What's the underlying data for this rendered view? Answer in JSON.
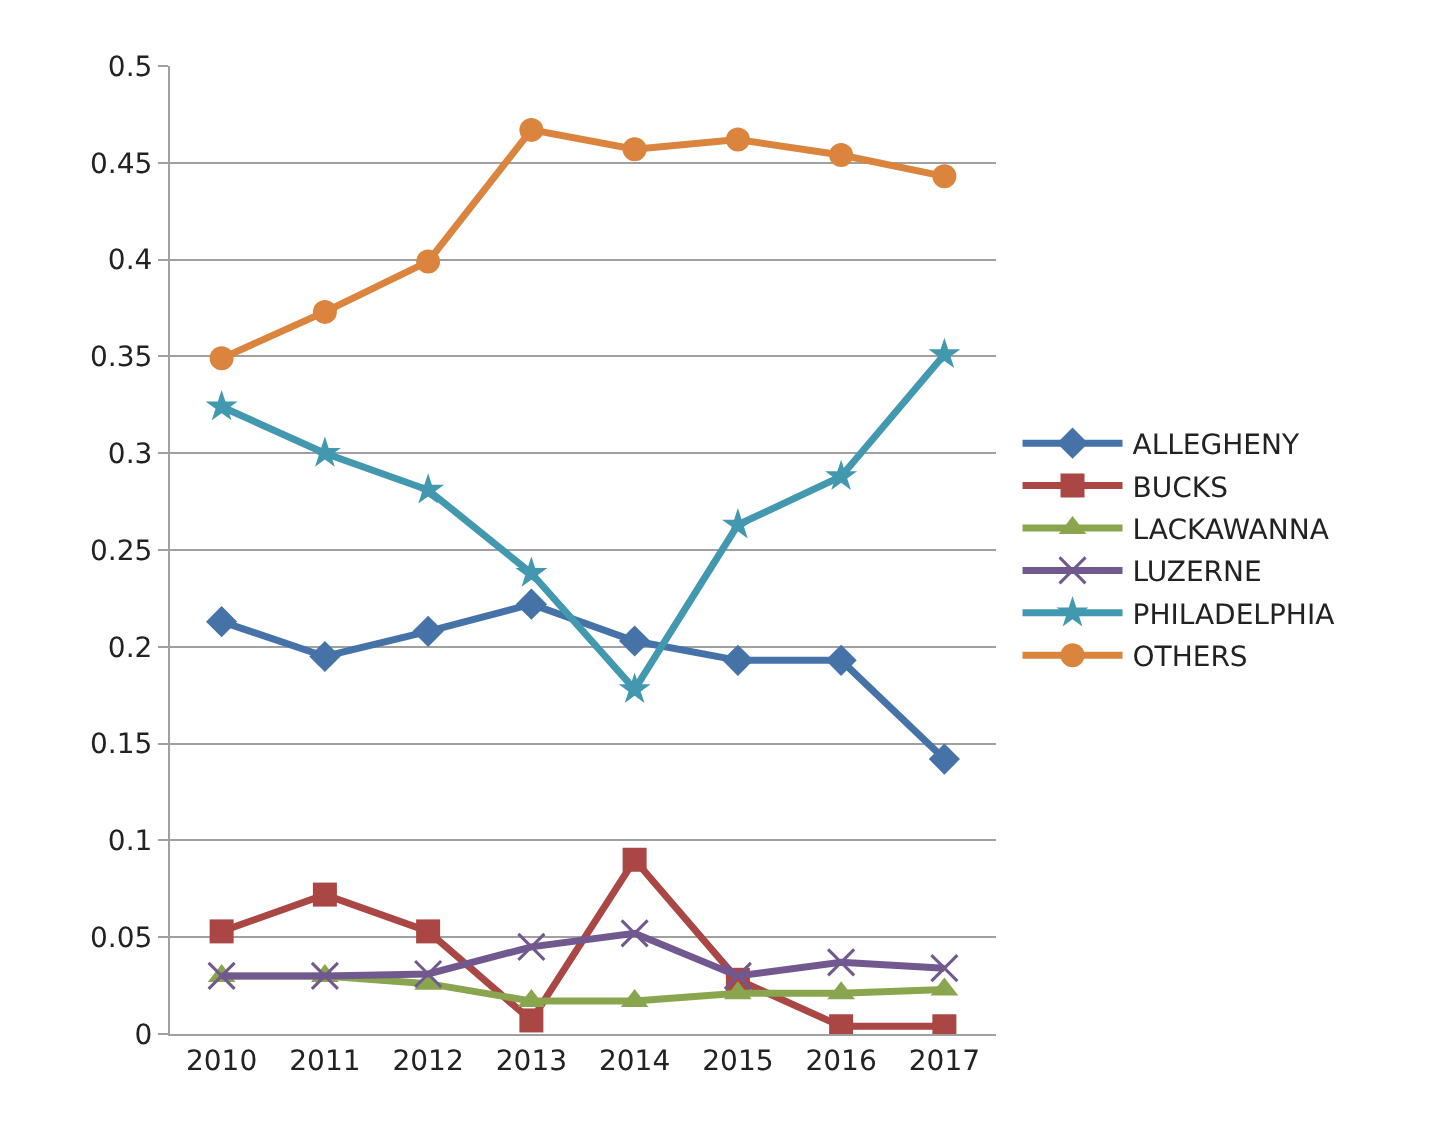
{
  "chart_data": {
    "type": "line",
    "categories": [
      "2010",
      "2011",
      "2012",
      "2013",
      "2014",
      "2015",
      "2016",
      "2017"
    ],
    "ylim": [
      0,
      0.5
    ],
    "yticks": [
      {
        "value": 0,
        "label": "0"
      },
      {
        "value": 0.05,
        "label": "0.05"
      },
      {
        "value": 0.1,
        "label": "0.1"
      },
      {
        "value": 0.15,
        "label": "0.15"
      },
      {
        "value": 0.2,
        "label": "0.2"
      },
      {
        "value": 0.25,
        "label": "0.25"
      },
      {
        "value": 0.3,
        "label": "0.3"
      },
      {
        "value": 0.35,
        "label": "0.35"
      },
      {
        "value": 0.4,
        "label": "0.4"
      },
      {
        "value": 0.45,
        "label": "0.45"
      },
      {
        "value": 0.5,
        "label": "0.5"
      }
    ],
    "grid": "y",
    "legend": "right",
    "line_style": "solid",
    "series": [
      {
        "name": "ALLEGHENY",
        "color": "#4572a7",
        "marker": "diamond",
        "values": [
          0.213,
          0.195,
          0.208,
          0.222,
          0.203,
          0.193,
          0.193,
          0.142
        ]
      },
      {
        "name": "BUCKS",
        "color": "#aa4643",
        "marker": "square",
        "values": [
          0.053,
          0.072,
          0.053,
          0.007,
          0.09,
          0.028,
          0.004,
          0.004
        ]
      },
      {
        "name": "LACKAWANNA",
        "color": "#89a54e",
        "marker": "triangle",
        "values": [
          0.03,
          0.03,
          0.026,
          0.017,
          0.017,
          0.021,
          0.021,
          0.023
        ]
      },
      {
        "name": "LUZERNE",
        "color": "#71588f",
        "marker": "cross",
        "values": [
          0.03,
          0.03,
          0.031,
          0.045,
          0.052,
          0.03,
          0.037,
          0.034
        ]
      },
      {
        "name": "PHILADELPHIA",
        "color": "#4198af",
        "marker": "star",
        "values": [
          0.324,
          0.3,
          0.281,
          0.238,
          0.178,
          0.263,
          0.288,
          0.351
        ]
      },
      {
        "name": "OTHERS",
        "color": "#db843d",
        "marker": "circle",
        "values": [
          0.349,
          0.373,
          0.399,
          0.467,
          0.457,
          0.462,
          0.454,
          0.443
        ]
      }
    ]
  }
}
